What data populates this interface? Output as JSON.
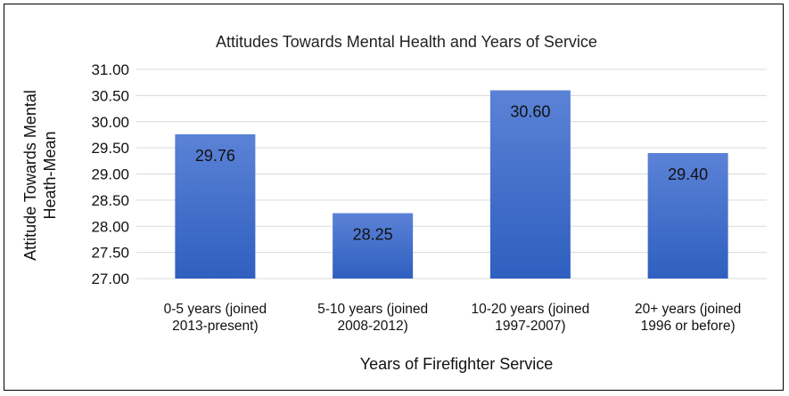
{
  "chart_data": {
    "type": "bar",
    "title": "Attitudes Towards Mental Health and Years of Service",
    "xlabel": "Years of Firefighter Service",
    "ylabel_lines": [
      "Attitude Towards Mental",
      "Heath-Mean"
    ],
    "ylim": [
      27.0,
      31.0
    ],
    "yticks": [
      "27.00",
      "27.50",
      "28.00",
      "28.50",
      "29.00",
      "29.50",
      "30.00",
      "30.50",
      "31.00"
    ],
    "categories": [
      [
        "0-5 years (joined",
        "2013-present)"
      ],
      [
        "5-10 years (joined",
        "2008-2012)"
      ],
      [
        "10-20 years (joined",
        "1997-2007)"
      ],
      [
        "20+ years (joined",
        "1996 or before)"
      ]
    ],
    "values": [
      29.76,
      28.25,
      30.6,
      29.4
    ],
    "value_labels": [
      "29.76",
      "28.25",
      "30.60",
      "29.40"
    ],
    "grid": true,
    "legend": "none",
    "colors": {
      "bar_top": "#5b82d6",
      "bar_bottom": "#2f5fc0",
      "grid": "#d9d9d9"
    }
  }
}
